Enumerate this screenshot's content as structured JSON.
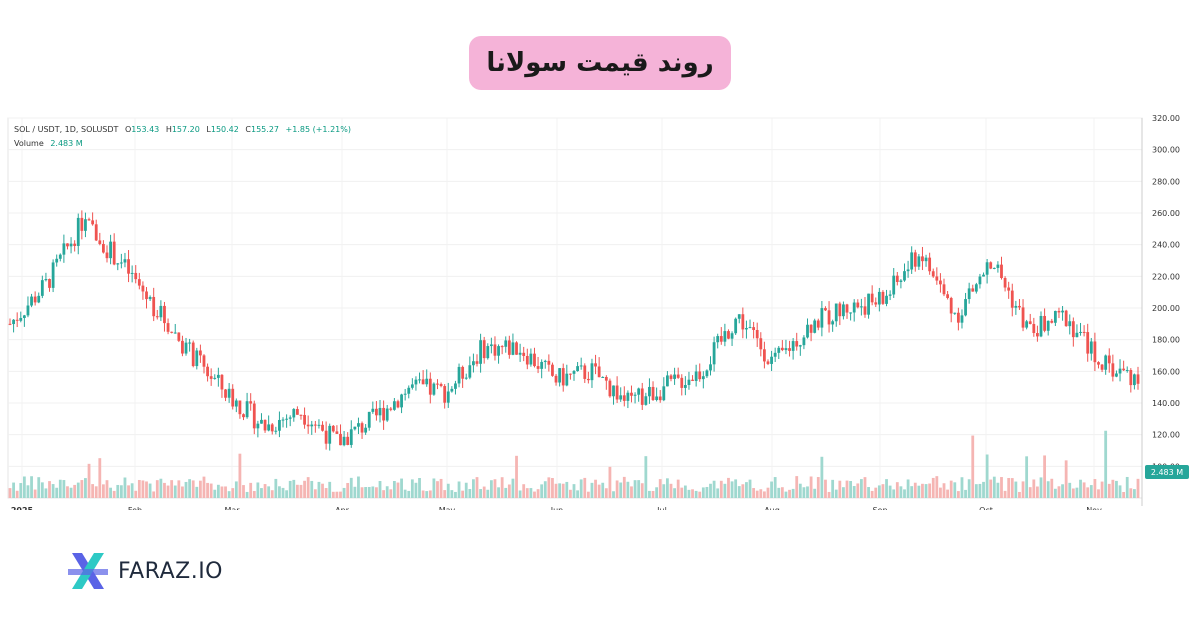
{
  "title": "روند قیمت سولانا",
  "legend": {
    "symbol": "SOL / USDT, 1D, SOLUSDT",
    "open_label": "O",
    "open": "153.43",
    "high_label": "H",
    "high": "157.20",
    "low_label": "L",
    "low": "150.42",
    "close_label": "C",
    "close": "155.27",
    "change": "+1.85 (+1.21%)",
    "volume_label": "Volume",
    "volume": "2.483 M"
  },
  "brand": {
    "name": "FARAZ.IO"
  },
  "colors": {
    "up": "#26a69a",
    "down": "#ef5350",
    "accent": "#f5b3d8",
    "vol_up": "#9fd8cf",
    "vol_down": "#f5b5b3",
    "logo_blue": "#5a63e6",
    "logo_teal": "#2ec9c5"
  },
  "chart_data": {
    "type": "candlestick",
    "price_axis": {
      "min": 80,
      "max": 320,
      "ticks": [
        "320.00",
        "300.00",
        "280.00",
        "260.00",
        "240.00",
        "220.00",
        "200.00",
        "180.00",
        "160.00",
        "140.00",
        "120.00",
        "100.00"
      ]
    },
    "last_volume_label": "2.483 M",
    "x_labels": [
      "2025",
      "Feb",
      "Mar",
      "Apr",
      "May",
      "Jun",
      "Jul",
      "Aug",
      "Sep",
      "Oct",
      "Nov"
    ],
    "close_path": [
      {
        "month": "Jan-start",
        "close": 190
      },
      {
        "month": "Jan-mid",
        "close": 215
      },
      {
        "month": "Jan-20",
        "close": 255
      },
      {
        "month": "Feb-start",
        "close": 230
      },
      {
        "month": "Feb-mid",
        "close": 200
      },
      {
        "month": "Feb-end",
        "close": 170
      },
      {
        "month": "Mar-start",
        "close": 145
      },
      {
        "month": "Mar-mid",
        "close": 125
      },
      {
        "month": "Mar-end",
        "close": 135
      },
      {
        "month": "Apr-start",
        "close": 115
      },
      {
        "month": "Apr-mid",
        "close": 130
      },
      {
        "month": "Apr-end",
        "close": 150
      },
      {
        "month": "May-start",
        "close": 147
      },
      {
        "month": "May-mid",
        "close": 175
      },
      {
        "month": "May-end",
        "close": 175
      },
      {
        "month": "Jun-start",
        "close": 155
      },
      {
        "month": "Jun-mid",
        "close": 160
      },
      {
        "month": "Jun-end",
        "close": 140
      },
      {
        "month": "Jul-start",
        "close": 150
      },
      {
        "month": "Jul-mid",
        "close": 160
      },
      {
        "month": "Jul-end",
        "close": 195
      },
      {
        "month": "Aug-start",
        "close": 165
      },
      {
        "month": "Aug-mid",
        "close": 190
      },
      {
        "month": "Aug-end",
        "close": 200
      },
      {
        "month": "Sep-start",
        "close": 205
      },
      {
        "month": "Sep-mid",
        "close": 235
      },
      {
        "month": "Sep-end",
        "close": 195
      },
      {
        "month": "Oct-start",
        "close": 230
      },
      {
        "month": "Oct-mid",
        "close": 185
      },
      {
        "month": "Oct-end",
        "close": 195
      },
      {
        "month": "Nov-start",
        "close": 165
      },
      {
        "month": "Nov-mid",
        "close": 155
      }
    ]
  }
}
